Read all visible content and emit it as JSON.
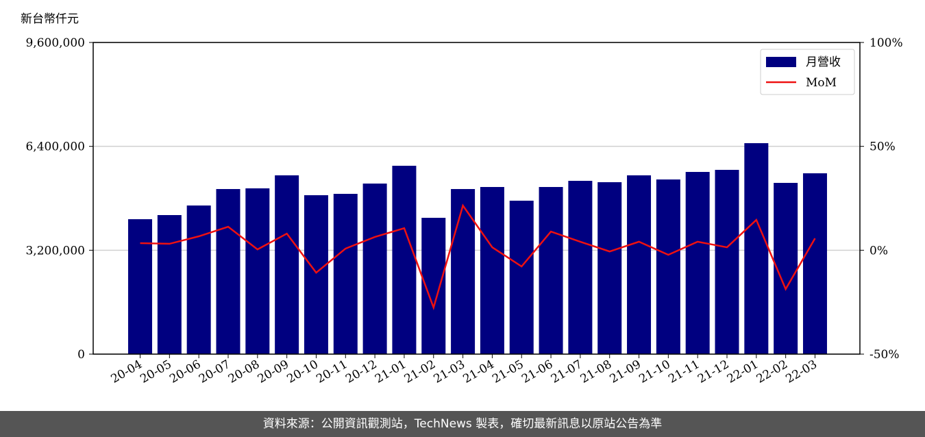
{
  "chart_data": {
    "type": "bar_line",
    "y_axis_label": "新台幣仟元",
    "categories": [
      "20-04",
      "20-05",
      "20-06",
      "20-07",
      "20-08",
      "20-09",
      "20-10",
      "20-11",
      "20-12",
      "21-01",
      "21-02",
      "21-03",
      "21-04",
      "21-05",
      "21-06",
      "21-07",
      "21-08",
      "21-09",
      "21-10",
      "21-11",
      "21-12",
      "22-01",
      "22-02",
      "22-03"
    ],
    "series": [
      {
        "name": "月營收",
        "color": "#000080",
        "type": "bar",
        "values": [
          4156000,
          4283000,
          4578000,
          5085000,
          5106000,
          5507000,
          4895000,
          4937000,
          5254000,
          5802000,
          4199000,
          5085000,
          5148000,
          4726000,
          5148000,
          5338000,
          5296000,
          5507000,
          5380000,
          5612000,
          5676000,
          6498000,
          5275000,
          5570000
        ]
      },
      {
        "name": "MoM",
        "color": "#ee1111",
        "type": "line",
        "axis": "y2",
        "values": [
          3.4,
          3.1,
          6.7,
          11.3,
          0.4,
          8.0,
          -10.8,
          0.8,
          6.4,
          10.6,
          -27.6,
          21.5,
          1.4,
          -7.8,
          9.0,
          4.1,
          -0.6,
          4.1,
          -2.2,
          4.1,
          1.4,
          14.6,
          -18.7,
          5.7
        ]
      }
    ],
    "ylim": [
      0,
      9600000
    ],
    "yticks": [
      0,
      {
        "value": 3200000,
        "label": "3,200,000"
      },
      {
        "value": 6400000,
        "label": "6,400,000"
      },
      {
        "value": 9600000,
        "label": "9,600,000"
      }
    ],
    "y2lim": [
      -50,
      100
    ],
    "y2ticks": [
      {
        "value": -50,
        "label": "-50%"
      },
      {
        "value": 0,
        "label": "0%"
      },
      {
        "value": 50,
        "label": "50%"
      },
      {
        "value": 100,
        "label": "100%"
      }
    ],
    "grid": true,
    "legend": "upper right",
    "footer": "資料來源：公開資訊觀測站，TechNews 製表，確切最新訊息以原站公告為準"
  }
}
